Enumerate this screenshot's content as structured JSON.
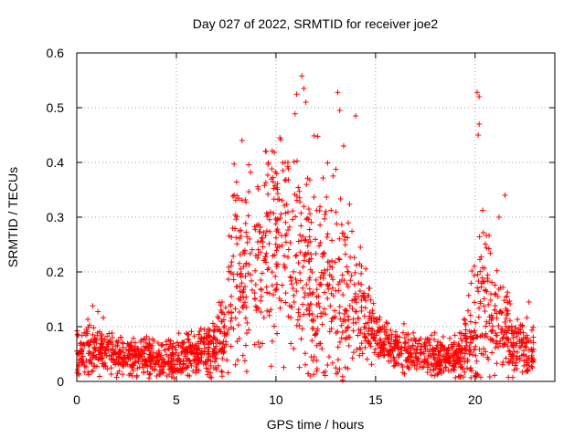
{
  "chart_data": {
    "type": "scatter",
    "title": "Day 027 of 2022, SRMTID for receiver joe2",
    "xlabel": "GPS time / hours",
    "ylabel": "SRMTID / TECUs",
    "xlim": [
      0,
      24
    ],
    "ylim": [
      0,
      0.6
    ],
    "grid": true,
    "marker": "+",
    "colors": {
      "points": "#ff0000",
      "grid": "#a0a0a0",
      "axes": "#000000"
    },
    "x_ticks": [
      "0",
      "5",
      "10",
      "15",
      "20"
    ],
    "y_ticks": [
      "0",
      "0.1",
      "0.2",
      "0.3",
      "0.4",
      "0.5",
      "0.6"
    ],
    "x_tick_values": [
      0,
      5,
      10,
      15,
      20
    ],
    "y_tick_values": [
      0,
      0.1,
      0.2,
      0.3,
      0.4,
      0.5,
      0.6
    ],
    "envelope": {
      "hours": [
        0,
        1,
        2,
        3,
        4,
        5,
        6,
        7,
        7.5,
        8,
        9,
        10,
        11,
        12,
        13,
        14,
        14.5,
        15,
        16,
        17,
        18,
        19,
        19.5,
        20,
        20.5,
        21,
        22,
        23
      ],
      "median": [
        0.055,
        0.06,
        0.045,
        0.045,
        0.04,
        0.045,
        0.05,
        0.06,
        0.1,
        0.2,
        0.22,
        0.25,
        0.24,
        0.18,
        0.16,
        0.15,
        0.12,
        0.08,
        0.06,
        0.05,
        0.045,
        0.045,
        0.06,
        0.1,
        0.15,
        0.13,
        0.06,
        0.05
      ],
      "spread": [
        0.03,
        0.04,
        0.025,
        0.025,
        0.025,
        0.03,
        0.025,
        0.04,
        0.08,
        0.14,
        0.13,
        0.14,
        0.16,
        0.16,
        0.15,
        0.1,
        0.06,
        0.04,
        0.03,
        0.03,
        0.025,
        0.025,
        0.05,
        0.12,
        0.12,
        0.09,
        0.04,
        0.04
      ]
    },
    "points_per_hour": 90,
    "outliers": [
      {
        "x": 11.3,
        "y": 0.558
      },
      {
        "x": 11.4,
        "y": 0.535
      },
      {
        "x": 11.5,
        "y": 0.51
      },
      {
        "x": 13.1,
        "y": 0.528
      },
      {
        "x": 13.2,
        "y": 0.495
      },
      {
        "x": 14.0,
        "y": 0.485
      },
      {
        "x": 20.1,
        "y": 0.528
      },
      {
        "x": 20.2,
        "y": 0.52
      },
      {
        "x": 20.2,
        "y": 0.47
      },
      {
        "x": 20.15,
        "y": 0.45
      },
      {
        "x": 8.3,
        "y": 0.44
      },
      {
        "x": 10.2,
        "y": 0.445
      },
      {
        "x": 9.5,
        "y": 0.42
      },
      {
        "x": 10.6,
        "y": 0.4
      },
      {
        "x": 13.4,
        "y": 0.43
      },
      {
        "x": 21.5,
        "y": 0.34
      },
      {
        "x": 21.2,
        "y": 0.3
      },
      {
        "x": 22.7,
        "y": 0.145
      },
      {
        "x": 13.35,
        "y": 0.002
      },
      {
        "x": 0.8,
        "y": 0.138
      }
    ]
  }
}
